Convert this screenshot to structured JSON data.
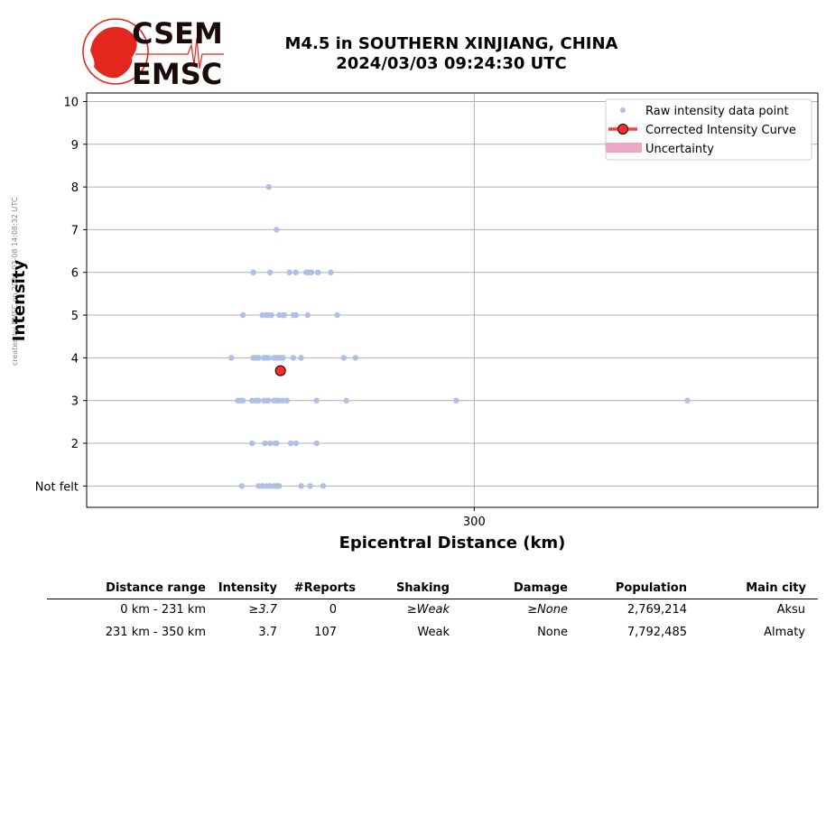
{
  "credit": "created by EMSC on 2024-03-08 14:08:32 UTC",
  "logo": {
    "line1": "CSEM",
    "line2": "EMSC",
    "colors": {
      "red": "#e3261e",
      "dark": "#1a0a0a"
    }
  },
  "title": {
    "line1": "M4.5 in SOUTHERN XINJIANG, CHINA",
    "line2": "2024/03/03 09:24:30 UTC"
  },
  "chart_data": {
    "type": "scatter",
    "xlabel": "Epicentral Distance (km)",
    "ylabel": "Intensity",
    "x_ticks": [
      300
    ],
    "xlim": [
      0,
      566
    ],
    "ylim": [
      0.5,
      10.2
    ],
    "y_ticks": [
      {
        "value": 1,
        "label": "Not felt"
      },
      {
        "value": 2,
        "label": "2"
      },
      {
        "value": 3,
        "label": "3"
      },
      {
        "value": 4,
        "label": "4"
      },
      {
        "value": 5,
        "label": "5"
      },
      {
        "value": 6,
        "label": "6"
      },
      {
        "value": 7,
        "label": "7"
      },
      {
        "value": 8,
        "label": "8"
      },
      {
        "value": 9,
        "label": "9"
      },
      {
        "value": 10,
        "label": "10"
      }
    ],
    "grid": true,
    "legend": {
      "placement": "top-right",
      "entries": [
        "Raw intensity data point",
        "Corrected Intensity Curve",
        "Uncertainty"
      ]
    },
    "colors": {
      "raw": "#aebfe8",
      "corrected": "#ff2a2a",
      "uncertainty": "#e9a9c5",
      "grid": "#b0b0b0"
    },
    "series": [
      {
        "name": "Raw intensity data point",
        "points": [
          [
            141,
            8
          ],
          [
            147,
            7
          ],
          [
            129,
            6
          ],
          [
            142,
            6
          ],
          [
            157,
            6
          ],
          [
            162,
            6
          ],
          [
            170,
            6
          ],
          [
            172,
            6
          ],
          [
            174,
            6
          ],
          [
            179,
            6
          ],
          [
            189,
            6
          ],
          [
            121,
            5
          ],
          [
            136,
            5
          ],
          [
            139,
            5
          ],
          [
            141,
            5
          ],
          [
            143,
            5
          ],
          [
            149,
            5
          ],
          [
            152,
            5
          ],
          [
            153,
            5
          ],
          [
            160,
            5
          ],
          [
            162,
            5
          ],
          [
            171,
            5
          ],
          [
            194,
            5
          ],
          [
            112,
            4
          ],
          [
            129,
            4
          ],
          [
            131,
            4
          ],
          [
            133,
            4
          ],
          [
            137,
            4
          ],
          [
            139,
            4
          ],
          [
            141,
            4
          ],
          [
            145,
            4
          ],
          [
            147,
            4
          ],
          [
            149,
            4
          ],
          [
            151,
            4
          ],
          [
            152,
            4
          ],
          [
            160,
            4
          ],
          [
            166,
            4
          ],
          [
            199,
            4
          ],
          [
            208,
            4
          ],
          [
            117,
            3
          ],
          [
            119,
            3
          ],
          [
            121,
            3
          ],
          [
            128,
            3
          ],
          [
            131,
            3
          ],
          [
            133,
            3
          ],
          [
            137,
            3
          ],
          [
            139,
            3
          ],
          [
            141,
            3
          ],
          [
            145,
            3
          ],
          [
            147,
            3
          ],
          [
            149,
            3
          ],
          [
            152,
            3
          ],
          [
            155,
            3
          ],
          [
            178,
            3
          ],
          [
            201,
            3
          ],
          [
            286,
            3
          ],
          [
            465,
            3
          ],
          [
            128,
            2
          ],
          [
            138,
            2
          ],
          [
            142,
            2
          ],
          [
            146,
            2
          ],
          [
            147,
            2
          ],
          [
            158,
            2
          ],
          [
            162,
            2
          ],
          [
            178,
            2
          ],
          [
            120,
            1
          ],
          [
            133,
            1
          ],
          [
            136,
            1
          ],
          [
            139,
            1
          ],
          [
            142,
            1
          ],
          [
            145,
            1
          ],
          [
            147,
            1
          ],
          [
            149,
            1
          ],
          [
            166,
            1
          ],
          [
            173,
            1
          ],
          [
            183,
            1
          ]
        ]
      },
      {
        "name": "Corrected Intensity Curve",
        "points": [
          [
            150,
            3.7
          ]
        ]
      }
    ]
  },
  "table": {
    "headers": [
      "Distance range",
      "Intensity",
      "#Reports",
      "Shaking",
      "Damage",
      "Population",
      "Main city"
    ],
    "rows": [
      {
        "distance": "0 km -  231 km",
        "intensity": "≥3.7",
        "reports": "0",
        "shaking": "≥Weak",
        "damage": "≥None",
        "population": "2,769,214",
        "city": "Aksu"
      },
      {
        "distance": "231 km -  350 km",
        "intensity": "3.7",
        "reports": "107",
        "shaking": "Weak",
        "damage": "None",
        "population": "7,792,485",
        "city": "Almaty"
      }
    ]
  }
}
